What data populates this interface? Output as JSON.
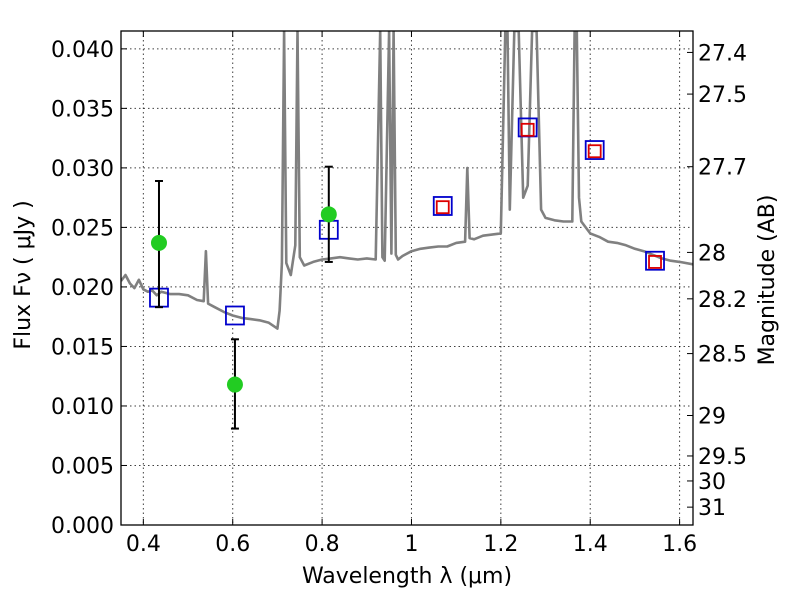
{
  "chart_data": {
    "type": "line",
    "xlabel": "Wavelength  λ (μm)",
    "ylabel": "Flux  Fν  ( μJy )",
    "ylabel_right": "Magnitude (AB)",
    "xlim": [
      0.35,
      1.63
    ],
    "ylim": [
      0.0,
      0.0415
    ],
    "grid": true,
    "x_ticks": [
      0.4,
      0.6,
      0.8,
      1.0,
      1.2,
      1.4,
      1.6
    ],
    "x_tick_labels": [
      "0.4",
      "0.6",
      "0.8",
      "1",
      "1.2",
      "1.4",
      "1.6"
    ],
    "y_ticks": [
      0.0,
      0.005,
      0.01,
      0.015,
      0.02,
      0.025,
      0.03,
      0.035,
      0.04
    ],
    "y_tick_labels": [
      "0.000",
      "0.005",
      "0.010",
      "0.015",
      "0.020",
      "0.025",
      "0.030",
      "0.035",
      "0.040"
    ],
    "right_ticks": [
      {
        "label": "27.4",
        "flux": 0.0397
      },
      {
        "label": "27.5",
        "flux": 0.0362
      },
      {
        "label": "27.7",
        "flux": 0.0301
      },
      {
        "label": "28",
        "flux": 0.0229
      },
      {
        "label": "28.2",
        "flux": 0.019
      },
      {
        "label": "28.5",
        "flux": 0.0144
      },
      {
        "label": "29",
        "flux": 0.0092
      },
      {
        "label": "29.5",
        "flux": 0.0058
      },
      {
        "label": "30",
        "flux": 0.0037
      },
      {
        "label": "31",
        "flux": 0.0015
      }
    ],
    "series": [
      {
        "style": "line",
        "color": "#808080",
        "x": [
          0.35,
          0.36,
          0.37,
          0.38,
          0.39,
          0.4,
          0.41,
          0.42,
          0.43,
          0.44,
          0.45,
          0.46,
          0.48,
          0.5,
          0.52,
          0.535,
          0.54,
          0.545,
          0.56,
          0.58,
          0.6,
          0.62,
          0.64,
          0.66,
          0.68,
          0.7,
          0.705,
          0.71,
          0.715,
          0.72,
          0.73,
          0.74,
          0.745,
          0.75,
          0.76,
          0.78,
          0.8,
          0.82,
          0.84,
          0.86,
          0.88,
          0.9,
          0.92,
          0.93,
          0.935,
          0.94,
          0.95,
          0.955,
          0.96,
          0.965,
          0.97,
          0.98,
          1.0,
          1.02,
          1.04,
          1.06,
          1.08,
          1.1,
          1.12,
          1.125,
          1.13,
          1.14,
          1.16,
          1.18,
          1.2,
          1.21,
          1.215,
          1.22,
          1.23,
          1.24,
          1.25,
          1.26,
          1.27,
          1.28,
          1.29,
          1.3,
          1.32,
          1.34,
          1.36,
          1.365,
          1.37,
          1.375,
          1.38,
          1.4,
          1.42,
          1.44,
          1.46,
          1.48,
          1.5,
          1.52,
          1.54,
          1.56,
          1.58,
          1.6,
          1.63
        ],
        "y": [
          0.0205,
          0.021,
          0.0203,
          0.0199,
          0.0206,
          0.0198,
          0.0196,
          0.0197,
          0.0193,
          0.0196,
          0.0195,
          0.0194,
          0.0194,
          0.0193,
          0.0189,
          0.0188,
          0.023,
          0.0186,
          0.0183,
          0.0179,
          0.0176,
          0.0174,
          0.0173,
          0.0172,
          0.017,
          0.0165,
          0.018,
          0.022,
          0.0415,
          0.022,
          0.021,
          0.0235,
          0.0415,
          0.0225,
          0.0218,
          0.0221,
          0.0223,
          0.0224,
          0.0225,
          0.0224,
          0.0223,
          0.0224,
          0.0223,
          0.0415,
          0.0225,
          0.0222,
          0.0415,
          0.0228,
          0.0415,
          0.0227,
          0.0223,
          0.0226,
          0.023,
          0.0232,
          0.0233,
          0.0234,
          0.0234,
          0.0237,
          0.0238,
          0.03,
          0.0241,
          0.024,
          0.0243,
          0.0244,
          0.0245,
          0.0415,
          0.0415,
          0.0265,
          0.0415,
          0.0415,
          0.0275,
          0.0285,
          0.0415,
          0.0415,
          0.0265,
          0.0258,
          0.0256,
          0.0255,
          0.0255,
          0.0415,
          0.0415,
          0.0275,
          0.0255,
          0.0245,
          0.0242,
          0.0238,
          0.0237,
          0.0235,
          0.0232,
          0.023,
          0.0227,
          0.0224,
          0.0222,
          0.0221,
          0.0219
        ]
      },
      {
        "style": "open-square",
        "color": "#0000cc",
        "x": [
          0.435,
          0.605,
          0.815,
          1.07,
          1.26,
          1.41,
          1.545
        ],
        "y": [
          0.0191,
          0.0176,
          0.0248,
          0.0268,
          0.0334,
          0.0315,
          0.0222
        ]
      },
      {
        "style": "open-square",
        "color": "#dd0000",
        "x": [
          1.07,
          1.26,
          1.41,
          1.545
        ],
        "y": [
          0.0267,
          0.0332,
          0.0314,
          0.0221
        ]
      },
      {
        "style": "filled-circle-errorbar",
        "color": "#22cc22",
        "x": [
          0.435,
          0.605,
          0.815
        ],
        "y": [
          0.0237,
          0.0118,
          0.0261
        ],
        "yerr_low": [
          0.0183,
          0.0081,
          0.0221
        ],
        "yerr_high": [
          0.0289,
          0.0156,
          0.0301
        ]
      }
    ]
  }
}
